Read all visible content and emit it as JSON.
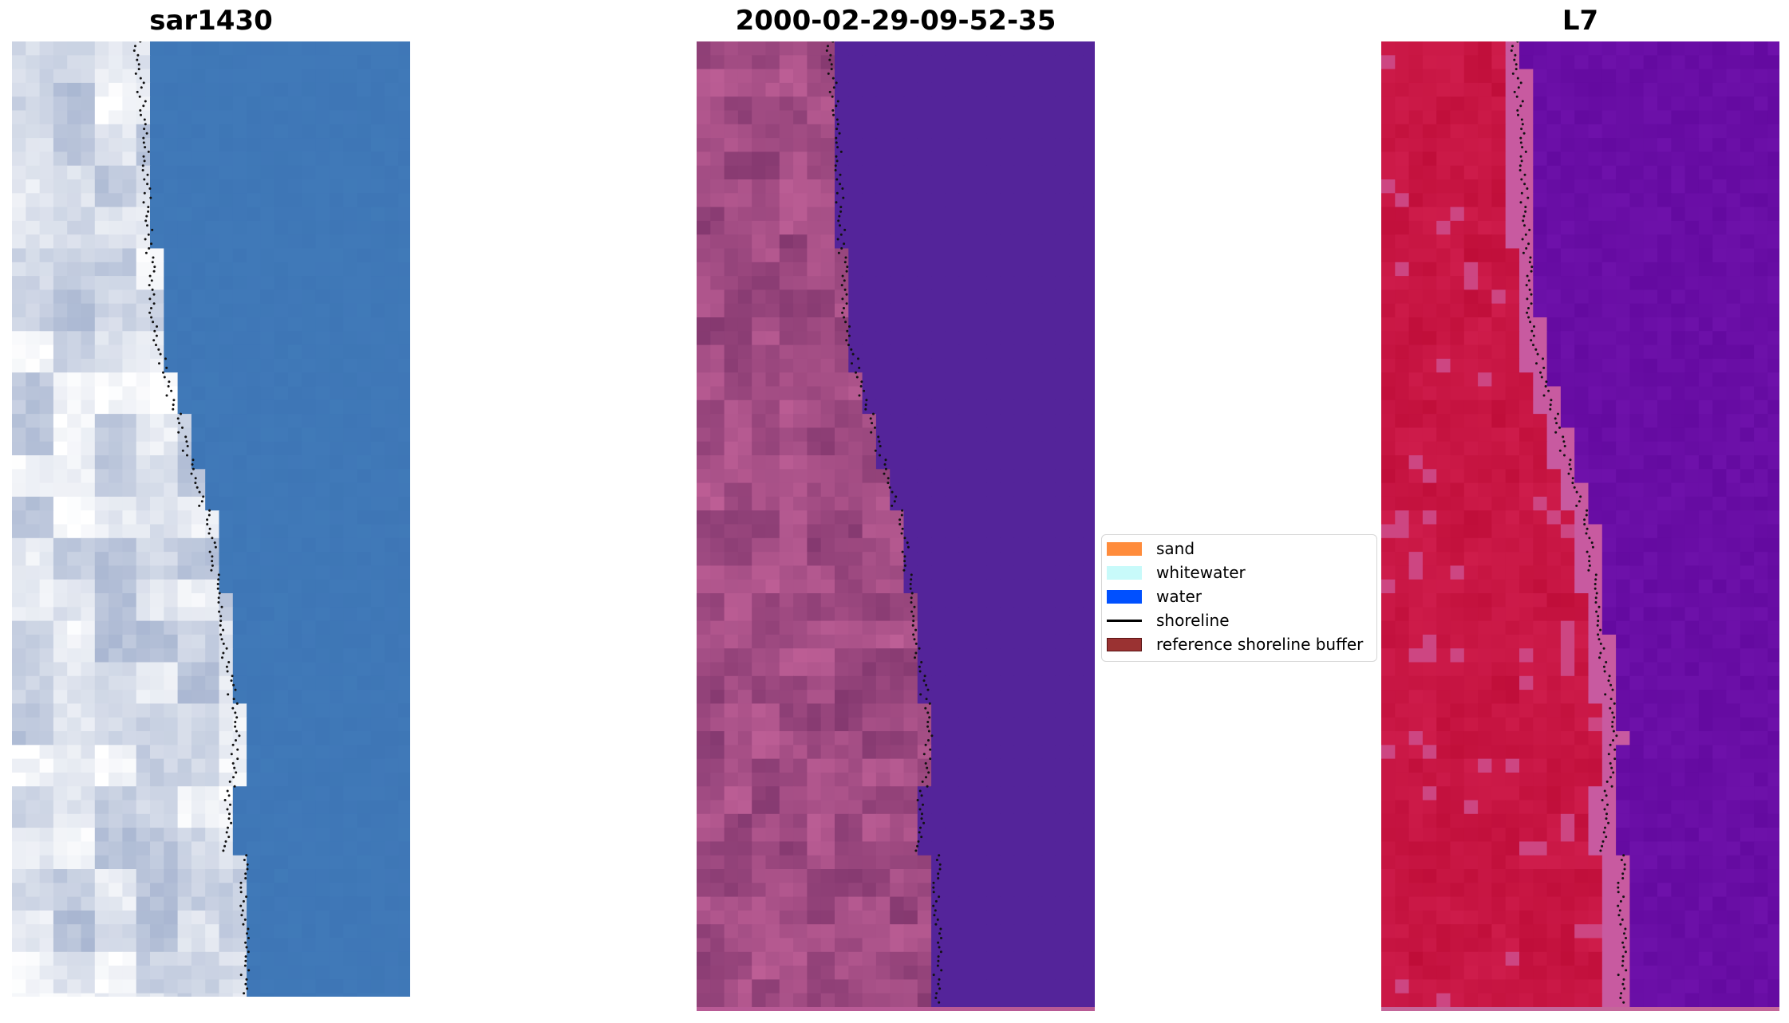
{
  "panels": [
    {
      "title": "sar1430",
      "image": "rgb-composite"
    },
    {
      "title": "2000-02-29-09-52-35",
      "image": "classified"
    },
    {
      "title": "L7",
      "image": "mndwi"
    }
  ],
  "legend": {
    "items": [
      {
        "label": "sand",
        "color": "#ff8c3c",
        "kind": "patch"
      },
      {
        "label": "whitewater",
        "color": "#c8fafa",
        "kind": "patch"
      },
      {
        "label": "water",
        "color": "#0050ff",
        "kind": "patch"
      },
      {
        "label": "shoreline",
        "color": "#000000",
        "kind": "line"
      },
      {
        "label": "reference shoreline buffer",
        "color": "#9a3232",
        "kind": "patch"
      }
    ]
  },
  "colors": {
    "water_rgb": "#3f78b8",
    "water_classified": "#54249a",
    "land_classified": "#944a86",
    "land_mndwi": "#c8103c",
    "water_mndwi": "#6a0ea0"
  }
}
